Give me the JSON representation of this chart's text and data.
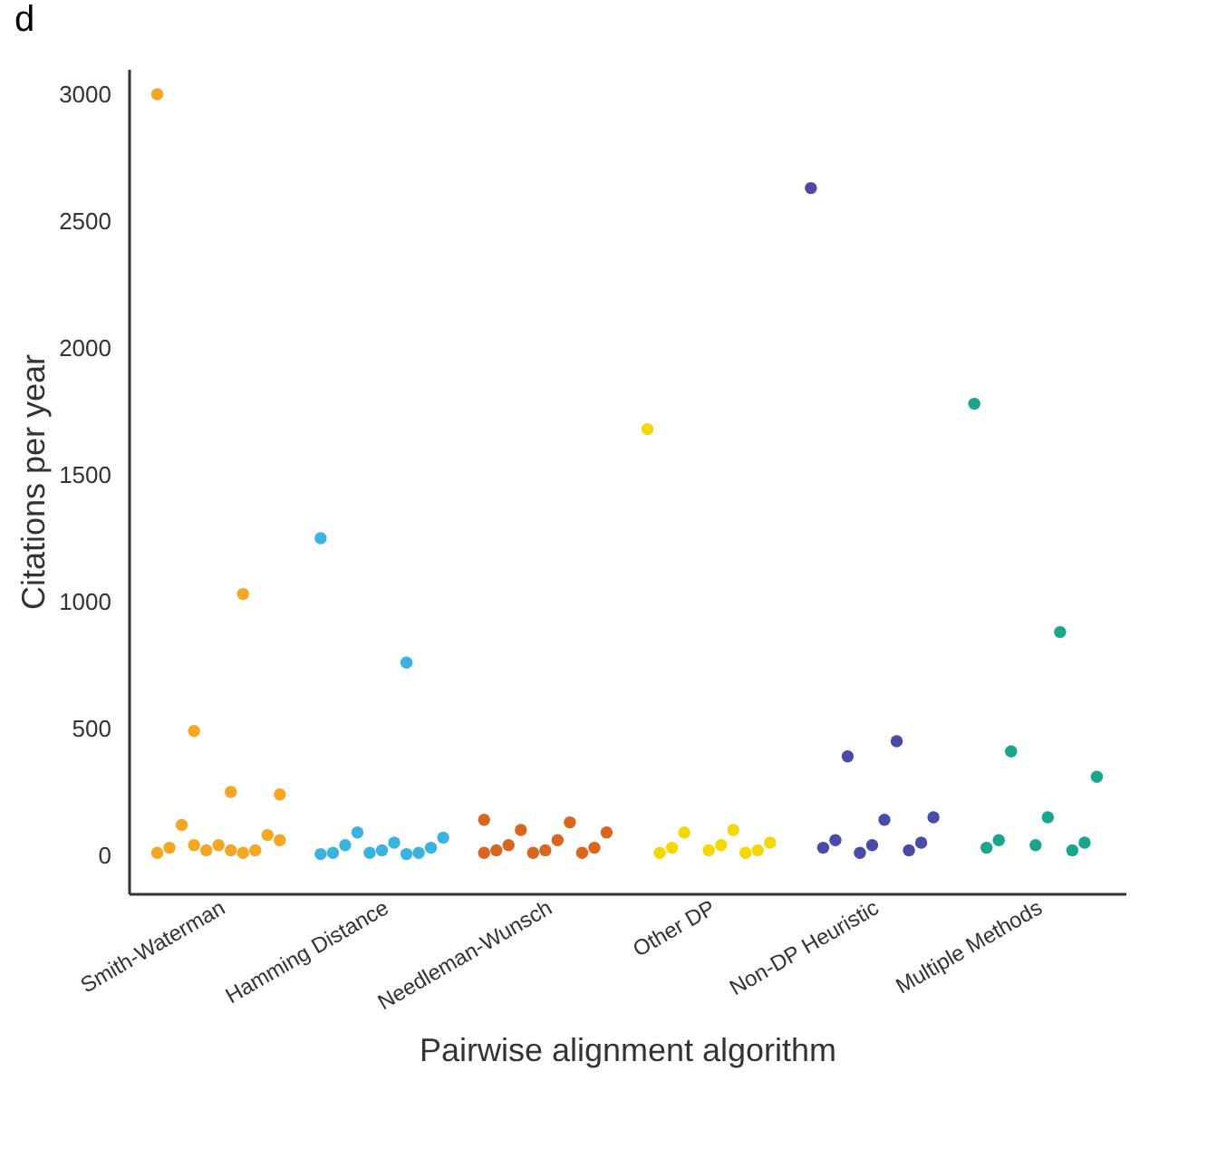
{
  "chart_data": {
    "type": "scatter",
    "xlabel": "Pairwise alignment algorithm",
    "ylabel": "Citations per year",
    "annotations": [
      "d"
    ],
    "categories": [
      "Smith-Waterman",
      "Hamming Distance",
      "Needleman-Wunsch",
      "Other DP",
      "Non-DP Heuristic",
      "Multiple Methods"
    ],
    "ylim": [
      -150,
      3100
    ],
    "yticks": [
      0,
      500,
      1000,
      1500,
      2000,
      2500,
      3000
    ],
    "grid": false,
    "legend": false,
    "marker": "circle",
    "series": [
      {
        "color": "#f5a623",
        "x": [
          "Smith-Waterman",
          "Smith-Waterman",
          "Smith-Waterman",
          "Smith-Waterman",
          "Smith-Waterman",
          "Smith-Waterman",
          "Smith-Waterman",
          "Smith-Waterman",
          "Smith-Waterman",
          "Smith-Waterman",
          "Smith-Waterman",
          "Smith-Waterman",
          "Smith-Waterman",
          "Smith-Waterman",
          "Smith-Waterman",
          "Smith-Waterman"
        ],
        "values": [
          3000,
          1030,
          490,
          240,
          250,
          120,
          80,
          40,
          30,
          20,
          20,
          10,
          10,
          40,
          60,
          20
        ]
      },
      {
        "color": "#3bb3e0",
        "x": [
          "Hamming Distance",
          "Hamming Distance",
          "Hamming Distance",
          "Hamming Distance",
          "Hamming Distance",
          "Hamming Distance",
          "Hamming Distance",
          "Hamming Distance",
          "Hamming Distance",
          "Hamming Distance",
          "Hamming Distance",
          "Hamming Distance",
          "Hamming Distance"
        ],
        "values": [
          1250,
          760,
          90,
          70,
          50,
          40,
          30,
          20,
          10,
          10,
          10,
          5,
          5
        ]
      },
      {
        "color": "#d9661f",
        "x": [
          "Needleman-Wunsch",
          "Needleman-Wunsch",
          "Needleman-Wunsch",
          "Needleman-Wunsch",
          "Needleman-Wunsch",
          "Needleman-Wunsch",
          "Needleman-Wunsch",
          "Needleman-Wunsch",
          "Needleman-Wunsch",
          "Needleman-Wunsch",
          "Needleman-Wunsch",
          "Needleman-Wunsch"
        ],
        "values": [
          140,
          130,
          100,
          90,
          60,
          40,
          30,
          20,
          20,
          10,
          10,
          10
        ]
      },
      {
        "color": "#f5d800",
        "x": [
          "Other DP",
          "Other DP",
          "Other DP",
          "Other DP",
          "Other DP",
          "Other DP",
          "Other DP",
          "Other DP",
          "Other DP",
          "Other DP"
        ],
        "values": [
          1680,
          100,
          90,
          50,
          40,
          30,
          20,
          20,
          10,
          10
        ]
      },
      {
        "color": "#4a4aa8",
        "x": [
          "Non-DP Heuristic",
          "Non-DP Heuristic",
          "Non-DP Heuristic",
          "Non-DP Heuristic",
          "Non-DP Heuristic",
          "Non-DP Heuristic",
          "Non-DP Heuristic",
          "Non-DP Heuristic",
          "Non-DP Heuristic",
          "Non-DP Heuristic",
          "Non-DP Heuristic"
        ],
        "values": [
          2630,
          450,
          390,
          150,
          140,
          60,
          50,
          40,
          30,
          20,
          10
        ]
      },
      {
        "color": "#1aa68c",
        "x": [
          "Multiple Methods",
          "Multiple Methods",
          "Multiple Methods",
          "Multiple Methods",
          "Multiple Methods",
          "Multiple Methods",
          "Multiple Methods",
          "Multiple Methods",
          "Multiple Methods",
          "Multiple Methods"
        ],
        "values": [
          1780,
          880,
          410,
          310,
          150,
          60,
          50,
          40,
          30,
          20
        ]
      }
    ]
  }
}
